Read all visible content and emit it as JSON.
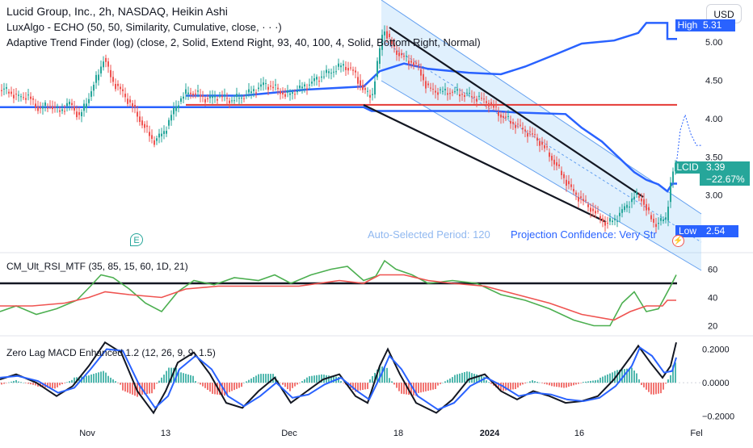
{
  "header": {
    "title": "Lucid Group, Inc., 2h, NASDAQ, Heikin Ashi",
    "indicator_1": "LuxAlgo - ECHO (50, 50, Similarity, Cumulative, close, · · ·)",
    "indicator_2": "Adaptive Trend Finder (log) (close, 2, Solid, Extend Right, 93, 40, 100, 4, Solid, Bottom Right, Normal)"
  },
  "currency_button": "USD",
  "price_tags": {
    "high_label": "High",
    "high_value": "5.31",
    "lcid_label": "LCID",
    "lcid_value": "3.39",
    "lcid_change": "−22.67%",
    "low_label": "Low",
    "low_value": "2.54"
  },
  "annotations": {
    "auto_period": "Auto-Selected Period: 120",
    "projection": "Projection Confidence: Very Str"
  },
  "rsi_pane": {
    "title": "CM_Ult_RSI_MTF (35, 85, 15, 60, 1D, 21)"
  },
  "macd_pane": {
    "title": "Zero Lag MACD Enhanced 1.2 (12, 26, 9, 9, 1.5)"
  },
  "colors": {
    "up": "#26a69a",
    "down": "#ef5350",
    "blue": "#2962ff",
    "red_line": "#e53935",
    "channel": "#90caf9",
    "rsi_green": "#4caf50",
    "rsi_red": "#ef5350"
  },
  "chart_data": [
    {
      "type": "candlestick",
      "name": "price",
      "y_ticks": [
        3.0,
        3.5,
        4.0,
        4.5,
        5.0
      ],
      "y_tick_labels": [
        "3.00",
        "3.50",
        "4.00",
        "4.50",
        "5.00"
      ],
      "ylim": [
        2.28,
        5.55
      ],
      "x_date_labels": [
        "Nov",
        "13",
        "Dec",
        "18",
        "2024",
        "16",
        "Fel"
      ],
      "price_path": [
        [
          0,
          4.38
        ],
        [
          12,
          4.36
        ],
        [
          22,
          4.28
        ],
        [
          35,
          4.3
        ],
        [
          50,
          4.12
        ],
        [
          62,
          4.18
        ],
        [
          75,
          4.1
        ],
        [
          88,
          4.2
        ],
        [
          100,
          4.02
        ],
        [
          112,
          4.3
        ],
        [
          122,
          4.55
        ],
        [
          130,
          4.8
        ],
        [
          140,
          4.5
        ],
        [
          152,
          4.35
        ],
        [
          164,
          4.18
        ],
        [
          178,
          3.92
        ],
        [
          192,
          3.7
        ],
        [
          204,
          3.82
        ],
        [
          214,
          4.05
        ],
        [
          224,
          4.25
        ],
        [
          234,
          4.35
        ],
        [
          245,
          4.32
        ],
        [
          258,
          4.25
        ],
        [
          272,
          4.3
        ],
        [
          286,
          4.24
        ],
        [
          300,
          4.28
        ],
        [
          314,
          4.36
        ],
        [
          328,
          4.45
        ],
        [
          342,
          4.4
        ],
        [
          356,
          4.3
        ],
        [
          370,
          4.38
        ],
        [
          384,
          4.45
        ],
        [
          398,
          4.55
        ],
        [
          412,
          4.62
        ],
        [
          426,
          4.7
        ],
        [
          440,
          4.6
        ],
        [
          452,
          4.35
        ],
        [
          462,
          4.3
        ],
        [
          470,
          4.8
        ],
        [
          476,
          5.2
        ],
        [
          482,
          5.05
        ],
        [
          490,
          4.9
        ],
        [
          500,
          4.8
        ],
        [
          510,
          4.75
        ],
        [
          520,
          4.65
        ],
        [
          530,
          4.4
        ],
        [
          545,
          4.35
        ],
        [
          560,
          4.35
        ],
        [
          575,
          4.32
        ],
        [
          590,
          4.28
        ],
        [
          605,
          4.22
        ],
        [
          620,
          4.05
        ],
        [
          635,
          3.95
        ],
        [
          650,
          3.85
        ],
        [
          665,
          3.75
        ],
        [
          680,
          3.55
        ],
        [
          695,
          3.3
        ],
        [
          710,
          3.05
        ],
        [
          725,
          2.9
        ],
        [
          740,
          2.75
        ],
        [
          752,
          2.62
        ],
        [
          764,
          2.7
        ],
        [
          776,
          2.85
        ],
        [
          788,
          3.0
        ],
        [
          796,
          2.95
        ],
        [
          804,
          2.75
        ],
        [
          812,
          2.62
        ],
        [
          820,
          2.66
        ],
        [
          826,
          2.7
        ],
        [
          832,
          3.2
        ],
        [
          837,
          3.39
        ]
      ],
      "echo_projection": [
        [
          837,
          3.39
        ],
        [
          842,
          3.85
        ],
        [
          848,
          4.05
        ],
        [
          855,
          3.8
        ],
        [
          862,
          3.65
        ],
        [
          868,
          3.65
        ]
      ],
      "levels": {
        "high": 5.31,
        "last": 3.39,
        "low": 2.54,
        "red_line": 4.18
      }
    },
    {
      "type": "line",
      "name": "rsi",
      "y_ticks": [
        20,
        40,
        60
      ],
      "y_tick_labels": [
        "20",
        "40",
        "60"
      ],
      "ylim": [
        14,
        70
      ],
      "horizontal_line": 50,
      "series": [
        {
          "values": [
            [
              0,
              30
            ],
            [
              20,
              34
            ],
            [
              45,
              28
            ],
            [
              70,
              32
            ],
            [
              95,
              38
            ],
            [
              112,
              48
            ],
            [
              125,
              56
            ],
            [
              140,
              54
            ],
            [
              160,
              46
            ],
            [
              180,
              36
            ],
            [
              200,
              30
            ],
            [
              220,
              44
            ],
            [
              240,
              52
            ],
            [
              265,
              49
            ],
            [
              290,
              54
            ],
            [
              320,
              52
            ],
            [
              340,
              56
            ],
            [
              360,
              50
            ],
            [
              385,
              56
            ],
            [
              410,
              60
            ],
            [
              430,
              62
            ],
            [
              450,
              52
            ],
            [
              465,
              55
            ],
            [
              476,
              66
            ],
            [
              490,
              60
            ],
            [
              510,
              56
            ],
            [
              530,
              50
            ],
            [
              560,
              52
            ],
            [
              590,
              50
            ],
            [
              620,
              42
            ],
            [
              650,
              38
            ],
            [
              680,
              32
            ],
            [
              710,
              24
            ],
            [
              735,
              20
            ],
            [
              755,
              20
            ],
            [
              770,
              36
            ],
            [
              785,
              44
            ],
            [
              800,
              30
            ],
            [
              815,
              32
            ],
            [
              830,
              48
            ],
            [
              837,
              56
            ]
          ]
        },
        {
          "values": [
            [
              0,
              34
            ],
            [
              40,
              34
            ],
            [
              80,
              36
            ],
            [
              110,
              40
            ],
            [
              130,
              44
            ],
            [
              160,
              42
            ],
            [
              200,
              40
            ],
            [
              230,
              46
            ],
            [
              270,
              48
            ],
            [
              320,
              48
            ],
            [
              370,
              48
            ],
            [
              420,
              52
            ],
            [
              450,
              50
            ],
            [
              470,
              56
            ],
            [
              500,
              56
            ],
            [
              530,
              52
            ],
            [
              560,
              50
            ],
            [
              600,
              48
            ],
            [
              640,
              42
            ],
            [
              680,
              36
            ],
            [
              720,
              28
            ],
            [
              760,
              24
            ],
            [
              780,
              30
            ],
            [
              800,
              34
            ],
            [
              820,
              34
            ],
            [
              826,
              38
            ],
            [
              837,
              38
            ]
          ]
        }
      ]
    },
    {
      "type": "line",
      "name": "macd",
      "y_ticks": [
        -0.2,
        0.0,
        0.2
      ],
      "y_tick_labels": [
        "−0.2000",
        "0.0000",
        "0.2000"
      ],
      "ylim": [
        -0.24,
        0.27
      ],
      "series": [
        {
          "values": [
            [
              0,
              0.02
            ],
            [
              20,
              0.05
            ],
            [
              45,
              0.0
            ],
            [
              70,
              -0.08
            ],
            [
              90,
              -0.02
            ],
            [
              110,
              0.1
            ],
            [
              130,
              0.24
            ],
            [
              150,
              0.18
            ],
            [
              170,
              -0.05
            ],
            [
              190,
              -0.18
            ],
            [
              205,
              -0.05
            ],
            [
              220,
              0.12
            ],
            [
              240,
              0.18
            ],
            [
              260,
              0.05
            ],
            [
              280,
              -0.12
            ],
            [
              300,
              -0.15
            ],
            [
              320,
              -0.05
            ],
            [
              340,
              0.03
            ],
            [
              360,
              -0.12
            ],
            [
              380,
              -0.05
            ],
            [
              400,
              0.02
            ],
            [
              420,
              0.05
            ],
            [
              440,
              -0.08
            ],
            [
              455,
              -0.12
            ],
            [
              470,
              0.1
            ],
            [
              480,
              0.2
            ],
            [
              495,
              0.05
            ],
            [
              515,
              -0.12
            ],
            [
              540,
              -0.18
            ],
            [
              560,
              -0.1
            ],
            [
              580,
              0.02
            ],
            [
              600,
              0.05
            ],
            [
              620,
              -0.05
            ],
            [
              640,
              -0.1
            ],
            [
              660,
              -0.05
            ],
            [
              680,
              -0.08
            ],
            [
              700,
              -0.12
            ],
            [
              720,
              -0.11
            ],
            [
              740,
              -0.08
            ],
            [
              760,
              0.02
            ],
            [
              780,
              0.15
            ],
            [
              790,
              0.22
            ],
            [
              805,
              0.12
            ],
            [
              820,
              0.03
            ],
            [
              830,
              0.1
            ],
            [
              837,
              0.24
            ]
          ]
        },
        {
          "values": [
            [
              0,
              0.03
            ],
            [
              22,
              0.04
            ],
            [
              47,
              0.01
            ],
            [
              72,
              -0.06
            ],
            [
              92,
              -0.03
            ],
            [
              112,
              0.08
            ],
            [
              132,
              0.2
            ],
            [
              152,
              0.19
            ],
            [
              172,
              -0.01
            ],
            [
              192,
              -0.15
            ],
            [
              208,
              -0.08
            ],
            [
              222,
              0.08
            ],
            [
              242,
              0.16
            ],
            [
              262,
              0.08
            ],
            [
              282,
              -0.08
            ],
            [
              302,
              -0.14
            ],
            [
              322,
              -0.08
            ],
            [
              342,
              0.0
            ],
            [
              362,
              -0.09
            ],
            [
              382,
              -0.07
            ],
            [
              402,
              -0.01
            ],
            [
              422,
              0.03
            ],
            [
              442,
              -0.05
            ],
            [
              457,
              -0.1
            ],
            [
              472,
              0.05
            ],
            [
              482,
              0.16
            ],
            [
              497,
              0.08
            ],
            [
              517,
              -0.08
            ],
            [
              542,
              -0.16
            ],
            [
              562,
              -0.12
            ],
            [
              582,
              -0.02
            ],
            [
              602,
              0.03
            ],
            [
              622,
              -0.02
            ],
            [
              642,
              -0.08
            ],
            [
              662,
              -0.06
            ],
            [
              682,
              -0.07
            ],
            [
              702,
              -0.1
            ],
            [
              722,
              -0.11
            ],
            [
              742,
              -0.09
            ],
            [
              762,
              -0.02
            ],
            [
              782,
              0.1
            ],
            [
              792,
              0.21
            ],
            [
              807,
              0.16
            ],
            [
              822,
              0.06
            ],
            [
              832,
              0.07
            ],
            [
              837,
              0.15
            ]
          ]
        }
      ]
    }
  ]
}
